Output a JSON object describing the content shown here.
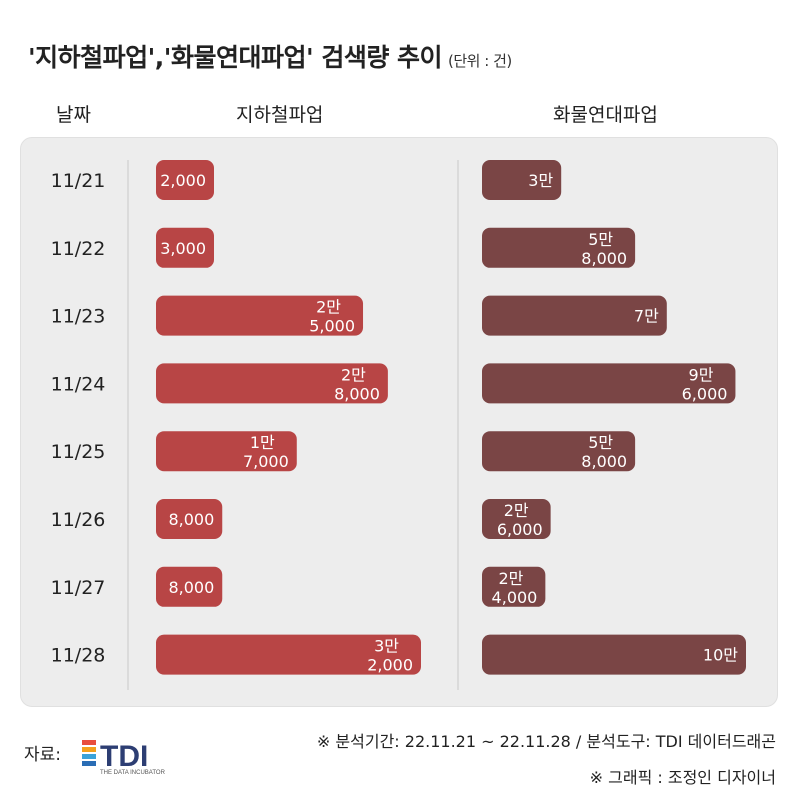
{
  "title": {
    "main": "'지하철파업','화물연대파업' 검색량 추이",
    "unit": "(단위 : 건)"
  },
  "headers": {
    "date": "날짜",
    "left": "지하철파업",
    "right": "화물연대파업"
  },
  "colors": {
    "left_bar": "#b84545",
    "right_bar": "#7a4545",
    "panel": "#ededed"
  },
  "chart_data": {
    "type": "bar",
    "categories": [
      "11/21",
      "11/22",
      "11/23",
      "11/24",
      "11/25",
      "11/26",
      "11/27",
      "11/28"
    ],
    "series": [
      {
        "name": "지하철파업",
        "values": [
          2000,
          3000,
          25000,
          28000,
          17000,
          8000,
          8000,
          32000
        ],
        "labels": [
          [
            "2,000"
          ],
          [
            "3,000"
          ],
          [
            "2만",
            "5,000"
          ],
          [
            "2만",
            "8,000"
          ],
          [
            "1만",
            "7,000"
          ],
          [
            "8,000"
          ],
          [
            "8,000"
          ],
          [
            "3만",
            "2,000"
          ]
        ]
      },
      {
        "name": "화물연대파업",
        "values": [
          30000,
          58000,
          70000,
          96000,
          58000,
          26000,
          24000,
          100000
        ],
        "labels": [
          [
            "3만"
          ],
          [
            "5만",
            "8,000"
          ],
          [
            "7만"
          ],
          [
            "9만",
            "6,000"
          ],
          [
            "5만",
            "8,000"
          ],
          [
            "2만",
            "6,000"
          ],
          [
            "2만",
            "4,000"
          ],
          [
            "10만"
          ]
        ]
      }
    ]
  },
  "footer": {
    "source_label": "자료:",
    "logo_text": "TDI",
    "logo_sub": "THE DATA INCUBATOR",
    "note1": "※ 분석기간: 22.11.21 ~ 22.11.28 / 분석도구: TDI 데이터드래곤",
    "note2": "※ 그래픽 : 조정인 디자이너"
  }
}
